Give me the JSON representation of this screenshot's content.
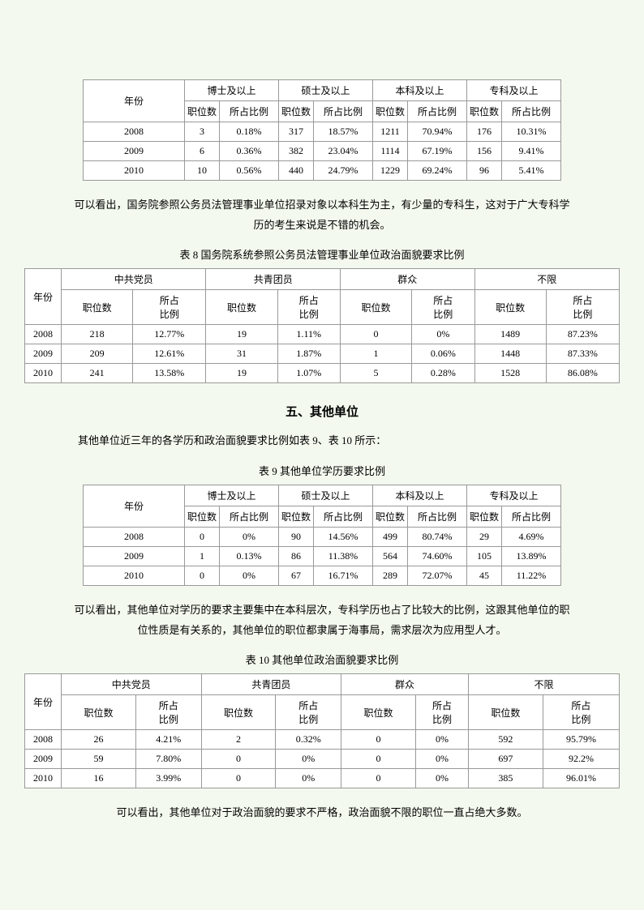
{
  "table7": {
    "col_year": "年份",
    "groups": [
      "博士及以上",
      "硕士及以上",
      "本科及以上",
      "专科及以上"
    ],
    "sub_pos": "职位数",
    "sub_ratio": "所占比例",
    "rows": [
      {
        "year": "2008",
        "v": [
          "3",
          "0.18%",
          "317",
          "18.57%",
          "1211",
          "70.94%",
          "176",
          "10.31%"
        ]
      },
      {
        "year": "2009",
        "v": [
          "6",
          "0.36%",
          "382",
          "23.04%",
          "1114",
          "67.19%",
          "156",
          "9.41%"
        ]
      },
      {
        "year": "2010",
        "v": [
          "10",
          "0.56%",
          "440",
          "24.79%",
          "1229",
          "69.24%",
          "96",
          "5.41%"
        ]
      }
    ]
  },
  "para1": "可以看出，国务院参照公务员法管理事业单位招录对象以本科生为主，有少量的专科生，这对于广大专科学历的考生来说是不错的机会。",
  "caption8": "表 8   国务院系统参照公务员法管理事业单位政治面貌要求比例",
  "table8": {
    "col_year": "年份",
    "groups": [
      "中共党员",
      "共青团员",
      "群众",
      "不限"
    ],
    "sub_pos": "职位数",
    "sub_ratio": "所占比例",
    "sub_ratio_2l_a": "所占",
    "sub_ratio_2l_b": "比例",
    "rows": [
      {
        "year": "2008",
        "v": [
          "218",
          "12.77%",
          "19",
          "1.11%",
          "0",
          "0%",
          "1489",
          "87.23%"
        ]
      },
      {
        "year": "2009",
        "v": [
          "209",
          "12.61%",
          "31",
          "1.87%",
          "1",
          "0.06%",
          "1448",
          "87.33%"
        ]
      },
      {
        "year": "2010",
        "v": [
          "241",
          "13.58%",
          "19",
          "1.07%",
          "5",
          "0.28%",
          "1528",
          "86.08%"
        ]
      }
    ]
  },
  "heading5": "五、其他单位",
  "para2": "其他单位近三年的各学历和政治面貌要求比例如表 9、表 10 所示：",
  "caption9": "表 9   其他单位学历要求比例",
  "table9": {
    "col_year": "年份",
    "groups": [
      "博士及以上",
      "硕士及以上",
      "本科及以上",
      "专科及以上"
    ],
    "sub_pos": "职位数",
    "sub_ratio": "所占比例",
    "rows": [
      {
        "year": "2008",
        "v": [
          "0",
          "0%",
          "90",
          "14.56%",
          "499",
          "80.74%",
          "29",
          "4.69%"
        ]
      },
      {
        "year": "2009",
        "v": [
          "1",
          "0.13%",
          "86",
          "11.38%",
          "564",
          "74.60%",
          "105",
          "13.89%"
        ]
      },
      {
        "year": "2010",
        "v": [
          "0",
          "0%",
          "67",
          "16.71%",
          "289",
          "72.07%",
          "45",
          "11.22%"
        ]
      }
    ]
  },
  "para3": "可以看出，其他单位对学历的要求主要集中在本科层次，专科学历也占了比较大的比例，这跟其他单位的职位性质是有关系的，其他单位的职位都隶属于海事局，需求层次为应用型人才。",
  "caption10": "表 10   其他单位政治面貌要求比例",
  "table10": {
    "col_year": "年份",
    "groups": [
      "中共党员",
      "共青团员",
      "群众",
      "不限"
    ],
    "sub_pos": "职位数",
    "sub_ratio": "所占比例",
    "sub_ratio_2l_a": "所占",
    "sub_ratio_2l_b": "比例",
    "rows": [
      {
        "year": "2008",
        "v": [
          "26",
          "4.21%",
          "2",
          "0.32%",
          "0",
          "0%",
          "592",
          "95.79%"
        ]
      },
      {
        "year": "2009",
        "v": [
          "59",
          "7.80%",
          "0",
          "0%",
          "0",
          "0%",
          "697",
          "92.2%"
        ]
      },
      {
        "year": "2010",
        "v": [
          "16",
          "3.99%",
          "0",
          "0%",
          "0",
          "0%",
          "385",
          "96.01%"
        ]
      }
    ]
  },
  "para4": "可以看出，其他单位对于政治面貌的要求不严格，政治面貌不限的职位一直占绝大多数。"
}
